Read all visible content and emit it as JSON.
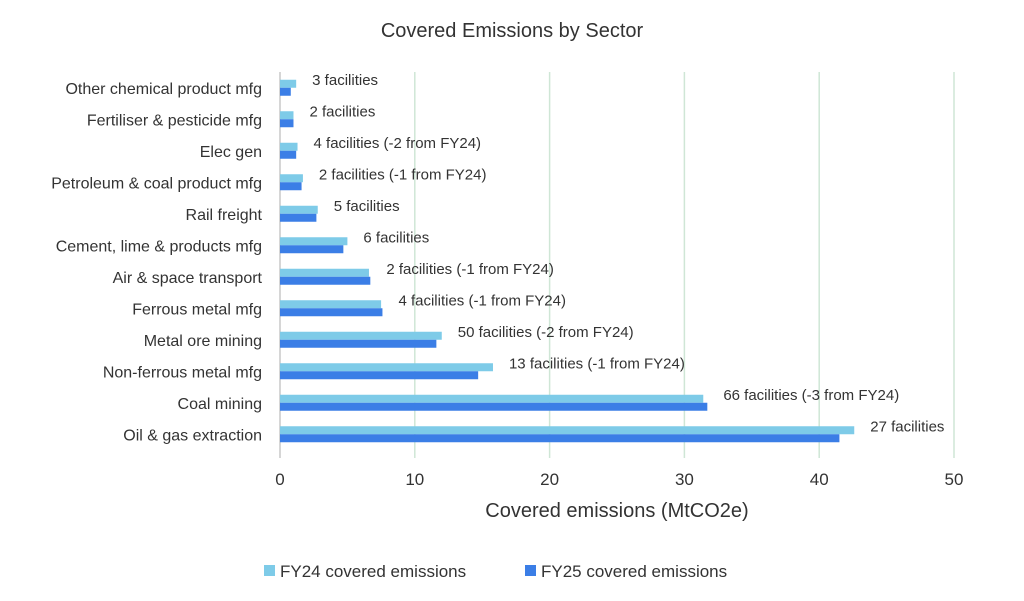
{
  "chart_data": {
    "type": "bar",
    "orientation": "horizontal",
    "title": "Covered Emissions by Sector",
    "xlabel": "Covered emissions (MtCO2e)",
    "ylabel": "",
    "xlim": [
      0,
      50
    ],
    "xticks": [
      0,
      10,
      20,
      30,
      40,
      50
    ],
    "grid": "vertical",
    "legend": "bottom",
    "categories": [
      "Other chemical product mfg",
      "Fertiliser & pesticide mfg",
      "Elec gen",
      "Petroleum & coal product mfg",
      "Rail freight",
      "Cement, lime & products mfg",
      "Air & space transport",
      "Ferrous metal mfg",
      "Metal ore mining",
      "Non-ferrous metal mfg",
      "Coal mining",
      "Oil & gas extraction"
    ],
    "series": [
      {
        "name": "FY24 covered emissions",
        "color": "#7ecbe8",
        "values": [
          1.2,
          1.0,
          1.3,
          1.7,
          2.8,
          5.0,
          6.6,
          7.5,
          12.0,
          15.8,
          31.4,
          42.6
        ]
      },
      {
        "name": "FY25 covered emissions",
        "color": "#3b7ee6",
        "values": [
          0.8,
          1.0,
          1.2,
          1.6,
          2.7,
          4.7,
          6.7,
          7.6,
          11.6,
          14.7,
          31.7,
          41.5
        ]
      }
    ],
    "annotations": [
      "3 facilities",
      "2 facilities",
      "4 facilities (-2 from FY24)",
      "2 facilities (-1 from FY24)",
      "5 facilities",
      "6 facilities",
      "2 facilities (-1 from FY24)",
      "4 facilities (-1 from FY24)",
      "50 facilities (-2 from FY24)",
      "13 facilities (-1 from FY24)",
      "66 facilities (-3 from FY24)",
      "27 facilities"
    ],
    "gridline_color": "#cfe6d6"
  }
}
